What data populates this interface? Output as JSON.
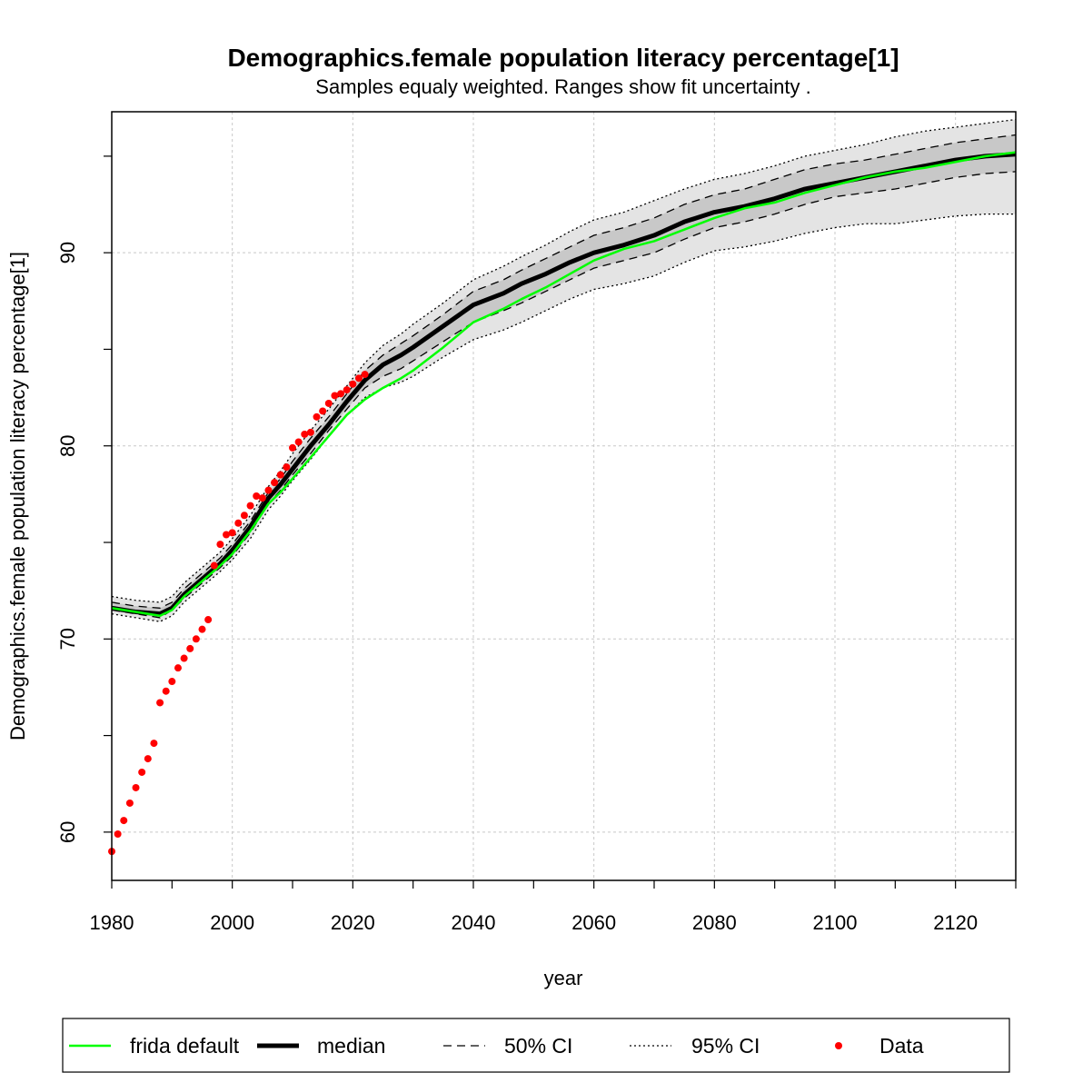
{
  "chart_data": {
    "type": "line",
    "title": "Demographics.female population literacy percentage[1]",
    "subtitle": "Samples equaly weighted. Ranges show  fit uncertainty .",
    "xlabel": "year",
    "ylabel": "Demographics.female population literacy percentage[1]",
    "xlim": [
      1980,
      2130
    ],
    "ylim": [
      57.5,
      97.3
    ],
    "x_ticks": [
      1980,
      2000,
      2020,
      2040,
      2060,
      2080,
      2100,
      2120
    ],
    "y_ticks": [
      60,
      70,
      80,
      90
    ],
    "grid": true,
    "legend_position": "bottom",
    "colors": {
      "frida_default": "#00ff00",
      "median": "#000000",
      "ci50_band": "#c8c8c8",
      "ci95_band": "#e4e4e4",
      "data": "#ff0000",
      "grid": "#c8c8c8"
    },
    "series": [
      {
        "name": "frida default",
        "style": "solid",
        "x": [
          1980,
          1984,
          1988,
          1990,
          1992,
          1995,
          1998,
          2000,
          2003,
          2006,
          2008,
          2010,
          2013,
          2016,
          2019,
          2022,
          2025,
          2028,
          2030,
          2035,
          2040,
          2045,
          2048,
          2052,
          2056,
          2060,
          2065,
          2070,
          2075,
          2080,
          2085,
          2090,
          2095,
          2100,
          2105,
          2110,
          2115,
          2120,
          2125,
          2130
        ],
        "y": [
          71.6,
          71.4,
          71.2,
          71.5,
          72.2,
          73.0,
          73.8,
          74.4,
          75.6,
          77.0,
          77.6,
          78.3,
          79.4,
          80.5,
          81.6,
          82.4,
          83.0,
          83.5,
          83.9,
          85.1,
          86.4,
          87.1,
          87.6,
          88.2,
          88.9,
          89.6,
          90.2,
          90.6,
          91.2,
          91.8,
          92.3,
          92.6,
          93.1,
          93.5,
          93.9,
          94.2,
          94.4,
          94.7,
          95.0,
          95.2
        ]
      },
      {
        "name": "median",
        "style": "thick",
        "x": [
          1980,
          1984,
          1988,
          1990,
          1992,
          1995,
          1998,
          2000,
          2003,
          2006,
          2008,
          2010,
          2013,
          2016,
          2019,
          2022,
          2025,
          2028,
          2030,
          2035,
          2040,
          2045,
          2048,
          2052,
          2056,
          2060,
          2065,
          2070,
          2075,
          2080,
          2085,
          2090,
          2095,
          2100,
          2105,
          2110,
          2115,
          2120,
          2125,
          2130
        ],
        "y": [
          71.6,
          71.4,
          71.3,
          71.6,
          72.3,
          73.1,
          73.9,
          74.6,
          75.8,
          77.3,
          78.0,
          78.8,
          80.0,
          81.1,
          82.3,
          83.4,
          84.2,
          84.7,
          85.1,
          86.2,
          87.3,
          87.9,
          88.4,
          88.9,
          89.5,
          90.0,
          90.4,
          90.9,
          91.6,
          92.1,
          92.4,
          92.8,
          93.3,
          93.6,
          93.9,
          94.2,
          94.5,
          94.8,
          95.0,
          95.1
        ]
      }
    ],
    "bands": [
      {
        "name": "95% CI",
        "style": "dotted",
        "x": [
          1980,
          1984,
          1988,
          1990,
          1992,
          1995,
          1998,
          2000,
          2003,
          2006,
          2008,
          2010,
          2013,
          2016,
          2019,
          2022,
          2025,
          2028,
          2030,
          2035,
          2040,
          2045,
          2048,
          2052,
          2056,
          2060,
          2065,
          2070,
          2075,
          2080,
          2085,
          2090,
          2095,
          2100,
          2105,
          2110,
          2115,
          2120,
          2125,
          2130
        ],
        "lower": [
          71.3,
          71.1,
          70.9,
          71.2,
          71.9,
          72.7,
          73.5,
          74.1,
          75.2,
          76.7,
          77.4,
          78.2,
          79.3,
          80.5,
          81.6,
          82.5,
          83.0,
          83.3,
          83.6,
          84.6,
          85.5,
          86.0,
          86.4,
          87.0,
          87.6,
          88.1,
          88.4,
          88.8,
          89.5,
          90.1,
          90.3,
          90.6,
          91.0,
          91.3,
          91.5,
          91.5,
          91.7,
          91.9,
          92.0,
          92.0
        ],
        "upper": [
          72.2,
          72.0,
          71.9,
          72.2,
          72.9,
          73.7,
          74.5,
          75.2,
          76.4,
          77.9,
          78.7,
          79.6,
          80.8,
          81.9,
          83.1,
          84.3,
          85.2,
          85.8,
          86.3,
          87.4,
          88.6,
          89.3,
          89.8,
          90.4,
          91.1,
          91.7,
          92.1,
          92.7,
          93.3,
          93.8,
          94.1,
          94.5,
          95.0,
          95.3,
          95.6,
          96.0,
          96.3,
          96.5,
          96.7,
          96.9
        ]
      },
      {
        "name": "50% CI",
        "style": "dashed",
        "x": [
          1980,
          1984,
          1988,
          1990,
          1992,
          1995,
          1998,
          2000,
          2003,
          2006,
          2008,
          2010,
          2013,
          2016,
          2019,
          2022,
          2025,
          2028,
          2030,
          2035,
          2040,
          2045,
          2048,
          2052,
          2056,
          2060,
          2065,
          2070,
          2075,
          2080,
          2085,
          2090,
          2095,
          2100,
          2105,
          2110,
          2115,
          2120,
          2125,
          2130
        ],
        "lower": [
          71.5,
          71.3,
          71.1,
          71.5,
          72.1,
          72.9,
          73.7,
          74.3,
          75.5,
          77.0,
          77.7,
          78.5,
          79.6,
          80.8,
          81.9,
          83.0,
          83.6,
          84.0,
          84.4,
          85.4,
          86.4,
          87.0,
          87.4,
          88.0,
          88.6,
          89.2,
          89.6,
          90.0,
          90.7,
          91.3,
          91.6,
          92.0,
          92.5,
          92.9,
          93.1,
          93.3,
          93.6,
          93.9,
          94.1,
          94.2
        ],
        "upper": [
          71.9,
          71.7,
          71.6,
          71.9,
          72.6,
          73.4,
          74.2,
          74.9,
          76.1,
          77.6,
          78.3,
          79.2,
          80.4,
          81.5,
          82.7,
          83.9,
          84.7,
          85.3,
          85.7,
          86.8,
          88.0,
          88.6,
          89.1,
          89.7,
          90.3,
          90.9,
          91.3,
          91.8,
          92.5,
          93.0,
          93.3,
          93.8,
          94.3,
          94.6,
          94.8,
          95.1,
          95.4,
          95.7,
          95.9,
          96.1
        ]
      }
    ],
    "data_points": {
      "name": "Data",
      "x": [
        1980,
        1981,
        1982,
        1983,
        1984,
        1985,
        1986,
        1987,
        1988,
        1989,
        1990,
        1991,
        1992,
        1993,
        1994,
        1995,
        1996,
        1997,
        1998,
        1999,
        2000,
        2001,
        2002,
        2003,
        2004,
        2005,
        2006,
        2007,
        2008,
        2009,
        2010,
        2011,
        2012,
        2013,
        2014,
        2015,
        2016,
        2017,
        2018,
        2019,
        2020,
        2021,
        2022
      ],
      "y": [
        59.0,
        59.9,
        60.6,
        61.5,
        62.3,
        63.1,
        63.8,
        64.6,
        66.7,
        67.3,
        67.8,
        68.5,
        69.0,
        69.5,
        70.0,
        70.5,
        71.0,
        73.8,
        74.9,
        75.4,
        75.5,
        76.0,
        76.4,
        76.9,
        77.4,
        77.3,
        77.7,
        78.1,
        78.5,
        78.9,
        79.9,
        80.2,
        80.6,
        80.7,
        81.5,
        81.8,
        82.2,
        82.6,
        82.7,
        82.9,
        83.2,
        83.5,
        83.7
      ]
    },
    "legend": [
      {
        "label": "frida default",
        "style": "solid-green"
      },
      {
        "label": "median",
        "style": "thick-black"
      },
      {
        "label": "50% CI",
        "style": "dashed"
      },
      {
        "label": "95% CI",
        "style": "dotted"
      },
      {
        "label": "Data",
        "style": "red-dot"
      }
    ]
  }
}
